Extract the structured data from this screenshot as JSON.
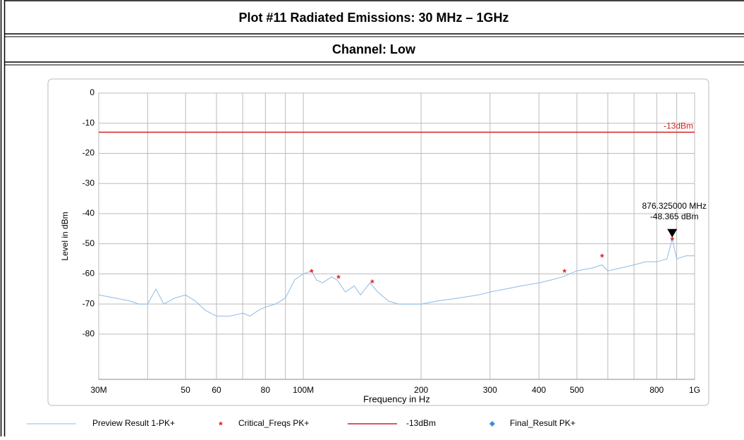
{
  "header": {
    "title": "Plot #11 Radiated Emissions: 30 MHz – 1GHz",
    "subtitle": "Channel: Low"
  },
  "chart_data": {
    "type": "line",
    "xlabel": "Frequency in Hz",
    "ylabel": "Level in dBm",
    "xscale": "log",
    "grid": true,
    "xlim": [
      30000000,
      1000000000
    ],
    "ylim": [
      -95,
      0
    ],
    "xticks": [
      {
        "value": 30000000,
        "label": "30M"
      },
      {
        "value": 50000000,
        "label": "50"
      },
      {
        "value": 60000000,
        "label": "60"
      },
      {
        "value": 80000000,
        "label": "80"
      },
      {
        "value": 100000000,
        "label": "100M"
      },
      {
        "value": 200000000,
        "label": "200"
      },
      {
        "value": 300000000,
        "label": "300"
      },
      {
        "value": 400000000,
        "label": "400"
      },
      {
        "value": 500000000,
        "label": "500"
      },
      {
        "value": 800000000,
        "label": "800"
      },
      {
        "value": 1000000000,
        "label": "1G"
      }
    ],
    "xminor": [
      40000000,
      70000000,
      90000000,
      600000000,
      700000000,
      900000000
    ],
    "yticks": [
      0,
      -10,
      -20,
      -30,
      -40,
      -50,
      -60,
      -70,
      -80
    ],
    "series": [
      {
        "name": "Preview Result 1-PK+",
        "type": "line",
        "color": "#8cbbe6",
        "x": [
          30000000,
          33000000,
          36000000,
          38000000,
          40000000,
          42000000,
          44000000,
          47000000,
          50000000,
          53000000,
          56000000,
          60000000,
          65000000,
          70000000,
          73000000,
          77000000,
          80000000,
          85000000,
          90000000,
          95000000,
          100000000,
          105000000,
          108000000,
          112000000,
          118000000,
          122000000,
          128000000,
          135000000,
          140000000,
          148000000,
          155000000,
          165000000,
          175000000,
          190000000,
          200000000,
          220000000,
          250000000,
          280000000,
          300000000,
          330000000,
          360000000,
          400000000,
          430000000,
          460000000,
          500000000,
          550000000,
          580000000,
          600000000,
          650000000,
          700000000,
          750000000,
          800000000,
          850000000,
          876325000,
          900000000,
          950000000,
          1000000000
        ],
        "values": [
          -67,
          -68,
          -69,
          -70,
          -70,
          -65,
          -70,
          -68,
          -67,
          -69,
          -72,
          -74,
          -74,
          -73,
          -74,
          -72,
          -71,
          -70,
          -68,
          -62,
          -60,
          -59,
          -62,
          -63,
          -61,
          -62,
          -66,
          -64,
          -67,
          -63,
          -66,
          -69,
          -70,
          -70,
          -70,
          -69,
          -68,
          -67,
          -66,
          -65,
          -64,
          -63,
          -62,
          -61,
          -59,
          -58,
          -57,
          -59,
          -58,
          -57,
          -56,
          -56,
          -55,
          -48.4,
          -55,
          -54,
          -54
        ]
      },
      {
        "name": "Critical_Freqs PK+",
        "type": "scatter",
        "color": "#e02020",
        "x": [
          105000000,
          123000000,
          150000000,
          465000000,
          580000000,
          876325000
        ],
        "values": [
          -59,
          -61,
          -62.5,
          -59,
          -54,
          -48.365
        ]
      },
      {
        "name": "-13dBm",
        "type": "limit",
        "color": "#d42020",
        "value": -13
      },
      {
        "name": "Final_Result PK+",
        "type": "scatter",
        "color": "#3a8fd8",
        "x": [],
        "values": []
      }
    ],
    "marker": {
      "x": 876325000,
      "y": -48.365,
      "labels": [
        "876.325000 MHz",
        "-48.365 dBm"
      ]
    }
  }
}
